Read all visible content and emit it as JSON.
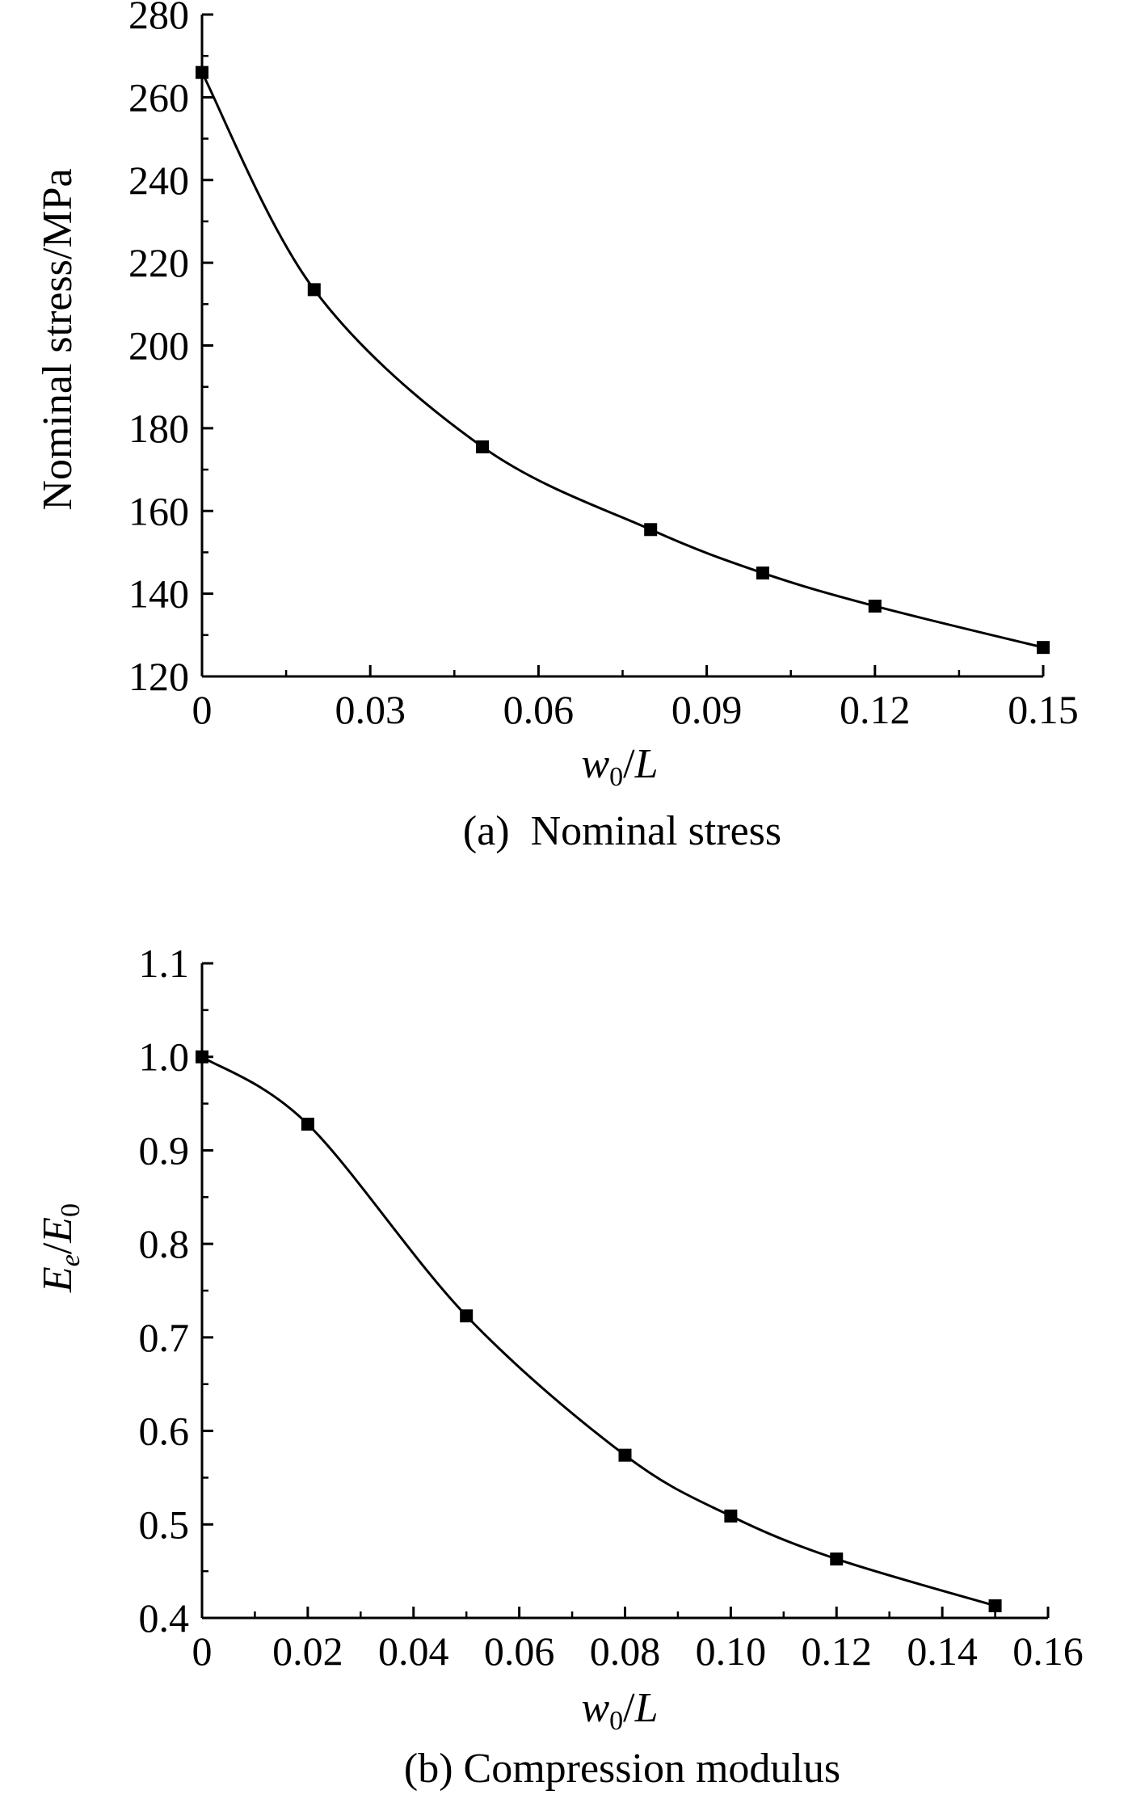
{
  "chart_data": [
    {
      "type": "line",
      "title": "",
      "caption": "(a)  Nominal stress",
      "xlabel": {
        "italic_main": "w",
        "subscript": "0",
        "italic_after": "",
        "slash": "/",
        "italic_tail": "L",
        "tail_subscript": ""
      },
      "ylabel": "Nominal stress/MPa",
      "xlim": [
        0,
        0.15
      ],
      "ylim": [
        120,
        280
      ],
      "x_ticks": [
        0,
        0.03,
        0.06,
        0.09,
        0.12,
        0.15
      ],
      "x_tick_labels": [
        "0",
        "0.03",
        "0.06",
        "0.09",
        "0.12",
        "0.15"
      ],
      "x_minor_step": 0.015,
      "y_ticks": [
        120,
        140,
        160,
        180,
        200,
        220,
        240,
        260,
        280
      ],
      "y_tick_labels": [
        "120",
        "140",
        "160",
        "180",
        "200",
        "220",
        "240",
        "260",
        "280"
      ],
      "y_minor_step": 10,
      "grid": false,
      "series": [
        {
          "name": "Nominal stress",
          "marker": "square",
          "color": "#000000",
          "x": [
            0,
            0.02,
            0.05,
            0.08,
            0.1,
            0.12,
            0.15
          ],
          "y": [
            266,
            213.5,
            175.5,
            155.5,
            145,
            137,
            127
          ]
        }
      ]
    },
    {
      "type": "line",
      "title": "",
      "caption": "(b) Compression modulus",
      "xlabel": {
        "italic_main": "w",
        "subscript": "0",
        "italic_after": "",
        "slash": "/",
        "italic_tail": "L",
        "tail_subscript": ""
      },
      "ylabel": {
        "italic_main": "E",
        "subscript": "e",
        "slash": "/",
        "italic_tail": "E",
        "tail_subscript": "0"
      },
      "xlim": [
        0,
        0.16
      ],
      "ylim": [
        0.4,
        1.1
      ],
      "x_ticks": [
        0,
        0.02,
        0.04,
        0.06,
        0.08,
        0.1,
        0.12,
        0.14,
        0.16
      ],
      "x_tick_labels": [
        "0",
        "0.02",
        "0.04",
        "0.06",
        "0.08",
        "0.10",
        "0.12",
        "0.14",
        "0.16"
      ],
      "x_minor_step": 0.01,
      "y_ticks": [
        0.4,
        0.5,
        0.6,
        0.7,
        0.8,
        0.9,
        1.0,
        1.1
      ],
      "y_tick_labels": [
        "0.4",
        "0.5",
        "0.6",
        "0.7",
        "0.8",
        "0.9",
        "1.0",
        "1.1"
      ],
      "y_minor_step": 0.05,
      "grid": false,
      "series": [
        {
          "name": "Compression modulus",
          "marker": "square",
          "color": "#000000",
          "x": [
            0,
            0.02,
            0.05,
            0.08,
            0.1,
            0.12,
            0.15
          ],
          "y": [
            1.0,
            0.928,
            0.723,
            0.574,
            0.509,
            0.463,
            0.413
          ]
        }
      ]
    }
  ]
}
